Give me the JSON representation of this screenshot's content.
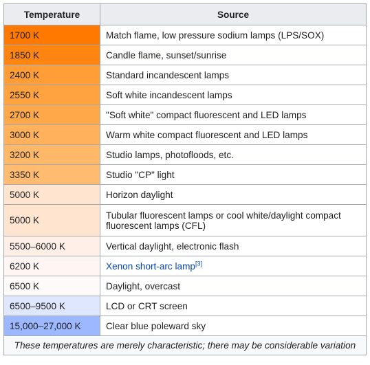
{
  "headers": {
    "temperature": "Temperature",
    "source": "Source"
  },
  "rows": [
    {
      "temp": "1700 K",
      "source": "Match flame, low pressure sodium lamps (LPS/SOX)",
      "color": "#ff7900"
    },
    {
      "temp": "1850 K",
      "source": "Candle flame, sunset/sunrise",
      "color": "#ff8512"
    },
    {
      "temp": "2400 K",
      "source": "Standard incandescent lamps",
      "color": "#ff9e37"
    },
    {
      "temp": "2550 K",
      "source": "Soft white incandescent lamps",
      "color": "#ffa340"
    },
    {
      "temp": "2700 K",
      "source": "\"Soft white\" compact fluorescent and LED lamps",
      "color": "#ffa84a"
    },
    {
      "temp": "3000 K",
      "source": "Warm white compact fluorescent and LED lamps",
      "color": "#ffb15b"
    },
    {
      "temp": "3200 K",
      "source": "Studio lamps, photofloods, etc.",
      "color": "#ffb867"
    },
    {
      "temp": "3350 K",
      "source": "Studio \"CP\" light",
      "color": "#ffbc70"
    },
    {
      "temp": "5000 K",
      "source": "Horizon daylight",
      "color": "#ffe4cf"
    },
    {
      "temp": "5000 K",
      "source": "Tubular fluorescent lamps or cool white/daylight compact fluorescent lamps (CFL)",
      "color": "#ffe4cf"
    },
    {
      "temp": "5500–6000 K",
      "source": "Vertical daylight, electronic flash",
      "color": "#ffefe6"
    },
    {
      "temp": "6200 K",
      "source": "Xenon short-arc lamp",
      "ref": "[3]",
      "color": "#fff5f2"
    },
    {
      "temp": "6500 K",
      "source": "Daylight, overcast",
      "color": "#fffafa"
    },
    {
      "temp": "6500–9500 K",
      "source": "LCD or CRT screen",
      "color": "#dfe7ff"
    },
    {
      "temp": "15,000–27,000 K",
      "source": "Clear blue poleward sky",
      "color": "#9db8ff"
    }
  ],
  "footnote": "These temperatures are merely characteristic; there may be considerable variation"
}
